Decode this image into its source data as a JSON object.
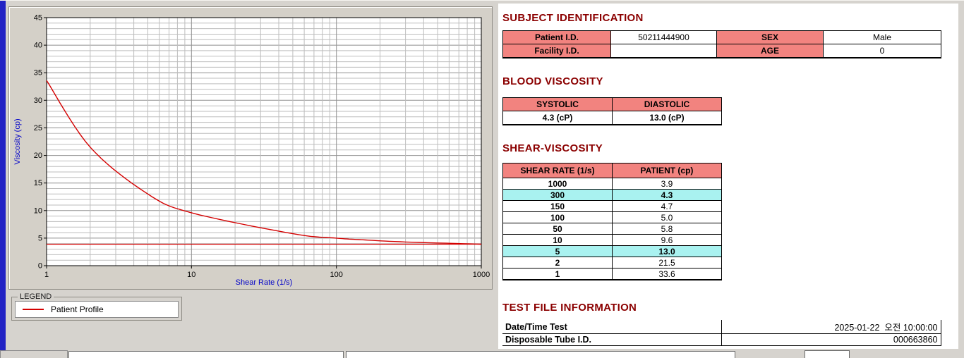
{
  "colors": {
    "section_header": "#8b0000",
    "table_header_bg": "#f2837f",
    "row_highlight_bg": "#a9f2f0",
    "series_line": "#d40000",
    "axis_label_text": "#0000c8",
    "window_left_bar": "#2222c4"
  },
  "legend": {
    "title": "LEGEND",
    "entries": [
      {
        "label": "Patient Profile",
        "color": "#d40000"
      }
    ]
  },
  "chart_data": {
    "type": "line",
    "title": "",
    "xlabel": "Shear Rate (1/s)",
    "ylabel": "Viscosity (cp)",
    "x_scale": "log",
    "xlim": [
      1,
      1000
    ],
    "ylim": [
      0,
      45
    ],
    "x_ticks": [
      1,
      10,
      100,
      1000
    ],
    "y_ticks": [
      0,
      5,
      10,
      15,
      20,
      25,
      30,
      35,
      40,
      45
    ],
    "grid": "major+minor",
    "legend_position": "below-left",
    "series": [
      {
        "name": "Patient Profile",
        "color": "#d40000",
        "x": [
          1,
          2,
          5,
          10,
          50,
          100,
          150,
          300,
          1000
        ],
        "y": [
          33.6,
          21.5,
          13.0,
          9.6,
          5.8,
          5.0,
          4.7,
          4.3,
          3.9
        ]
      }
    ],
    "reference_line": {
      "y": 3.9,
      "color": "#d40000"
    }
  },
  "subject_identification": {
    "title": "SUBJECT IDENTIFICATION",
    "rows": [
      {
        "label1": "Patient I.D.",
        "value1": "50211444900",
        "label2": "SEX",
        "value2": "Male"
      },
      {
        "label1": "Facility I.D.",
        "value1": "",
        "label2": "AGE",
        "value2": "0"
      }
    ]
  },
  "blood_viscosity": {
    "title": "BLOOD VISCOSITY",
    "headers": [
      "SYSTOLIC",
      "DIASTOLIC"
    ],
    "values": [
      "4.3 (cP)",
      "13.0 (cP)"
    ]
  },
  "shear_viscosity": {
    "title": "SHEAR-VISCOSITY",
    "headers": [
      "SHEAR RATE (1/s)",
      "PATIENT (cp)"
    ],
    "rows": [
      {
        "rate": "1000",
        "value": "3.9",
        "highlight": false
      },
      {
        "rate": "300",
        "value": "4.3",
        "highlight": true
      },
      {
        "rate": "150",
        "value": "4.7",
        "highlight": false
      },
      {
        "rate": "100",
        "value": "5.0",
        "highlight": false
      },
      {
        "rate": "50",
        "value": "5.8",
        "highlight": false
      },
      {
        "rate": "10",
        "value": "9.6",
        "highlight": false
      },
      {
        "rate": "5",
        "value": "13.0",
        "highlight": true
      },
      {
        "rate": "2",
        "value": "21.5",
        "highlight": false
      },
      {
        "rate": "1",
        "value": "33.6",
        "highlight": false
      }
    ]
  },
  "test_file_information": {
    "title": "TEST FILE INFORMATION",
    "rows": [
      {
        "label": "Date/Time Test",
        "value": "2025-01-22  오전 10:00:00"
      },
      {
        "label": "Disposable Tube I.D.",
        "value": "000663860"
      }
    ]
  }
}
